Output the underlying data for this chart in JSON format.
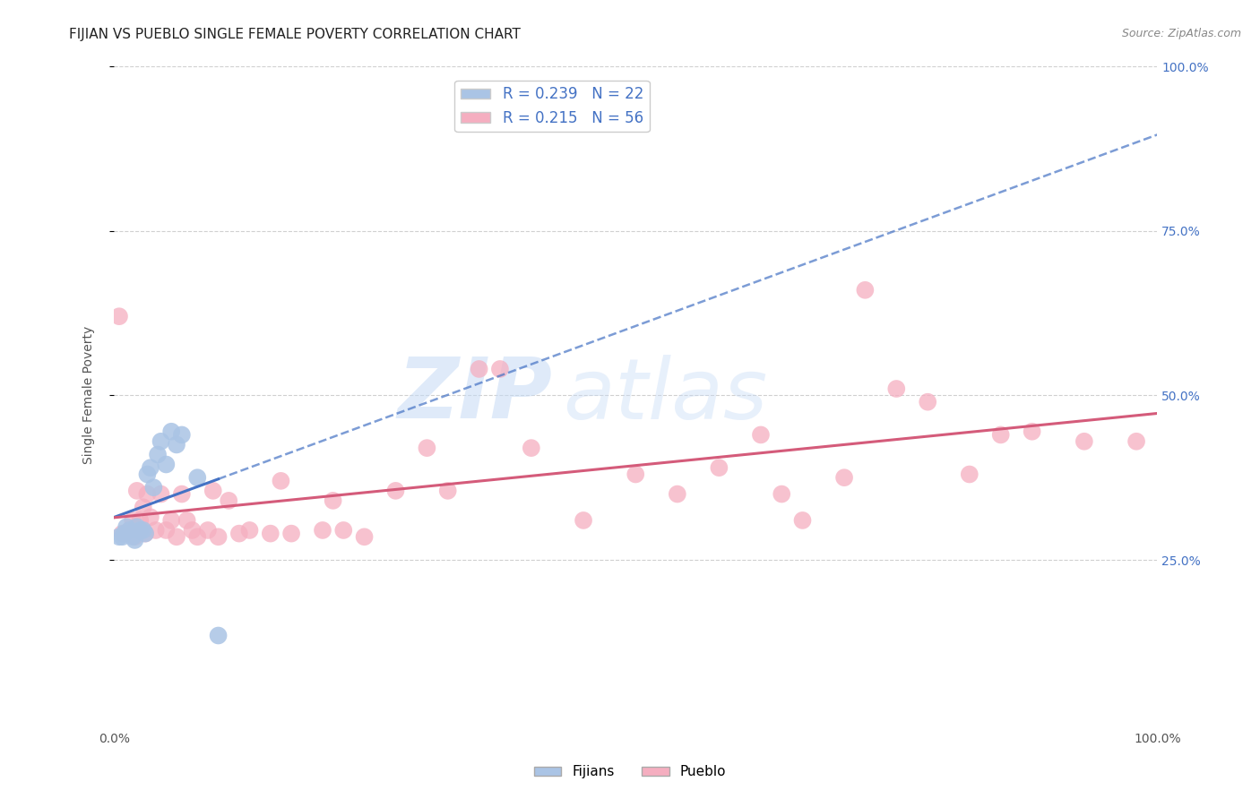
{
  "title": "FIJIAN VS PUEBLO SINGLE FEMALE POVERTY CORRELATION CHART",
  "source": "Source: ZipAtlas.com",
  "ylabel": "Single Female Poverty",
  "xlim": [
    0,
    1
  ],
  "ylim": [
    0,
    1
  ],
  "fijians_x": [
    0.005,
    0.008,
    0.01,
    0.012,
    0.015,
    0.018,
    0.02,
    0.022,
    0.025,
    0.028,
    0.03,
    0.032,
    0.035,
    0.038,
    0.042,
    0.045,
    0.05,
    0.055,
    0.06,
    0.065,
    0.08,
    0.1
  ],
  "fijians_y": [
    0.285,
    0.285,
    0.29,
    0.3,
    0.295,
    0.285,
    0.28,
    0.3,
    0.295,
    0.295,
    0.29,
    0.38,
    0.39,
    0.36,
    0.41,
    0.43,
    0.395,
    0.445,
    0.425,
    0.44,
    0.375,
    0.135
  ],
  "pueblo_x": [
    0.005,
    0.008,
    0.012,
    0.015,
    0.018,
    0.02,
    0.022,
    0.025,
    0.028,
    0.03,
    0.032,
    0.035,
    0.04,
    0.045,
    0.05,
    0.055,
    0.06,
    0.065,
    0.07,
    0.075,
    0.08,
    0.09,
    0.095,
    0.1,
    0.11,
    0.12,
    0.13,
    0.15,
    0.16,
    0.17,
    0.2,
    0.21,
    0.22,
    0.24,
    0.27,
    0.3,
    0.32,
    0.35,
    0.37,
    0.4,
    0.45,
    0.5,
    0.54,
    0.58,
    0.62,
    0.64,
    0.66,
    0.7,
    0.72,
    0.75,
    0.78,
    0.82,
    0.85,
    0.88,
    0.93,
    0.98
  ],
  "pueblo_y": [
    0.62,
    0.29,
    0.29,
    0.295,
    0.31,
    0.285,
    0.355,
    0.31,
    0.33,
    0.29,
    0.35,
    0.315,
    0.295,
    0.35,
    0.295,
    0.31,
    0.285,
    0.35,
    0.31,
    0.295,
    0.285,
    0.295,
    0.355,
    0.285,
    0.34,
    0.29,
    0.295,
    0.29,
    0.37,
    0.29,
    0.295,
    0.34,
    0.295,
    0.285,
    0.355,
    0.42,
    0.355,
    0.54,
    0.54,
    0.42,
    0.31,
    0.38,
    0.35,
    0.39,
    0.44,
    0.35,
    0.31,
    0.375,
    0.66,
    0.51,
    0.49,
    0.38,
    0.44,
    0.445,
    0.43,
    0.43
  ],
  "fijian_color": "#aac4e5",
  "pueblo_color": "#f5aec0",
  "fijian_line_color": "#4472c4",
  "pueblo_line_color": "#d45b7a",
  "background_color": "#ffffff",
  "grid_color": "#d0d0d0",
  "R_fijian": 0.239,
  "N_fijian": 22,
  "R_pueblo": 0.215,
  "N_pueblo": 56,
  "watermark_zip": "ZIP",
  "watermark_atlas": "atlas",
  "title_fontsize": 11,
  "axis_label_fontsize": 10,
  "tick_fontsize": 10,
  "legend_fontsize": 12
}
